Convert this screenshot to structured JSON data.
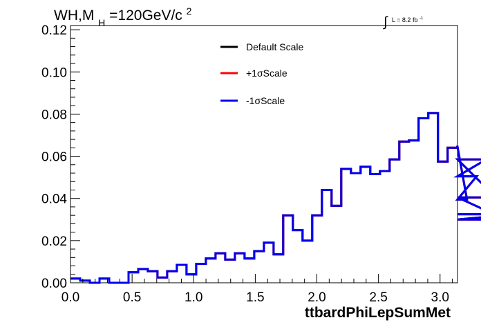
{
  "chart_data": {
    "type": "step",
    "title_parts": {
      "base": "WH,M",
      "subscript": "H",
      "value": "=120GeV/c",
      "superscript": "2"
    },
    "luminosity": {
      "integral_sign": "∫",
      "text": "L = 8.2 fb",
      "superscript": "-1"
    },
    "xlabel": "ttbardPhiLepSumMet",
    "ylabel": "",
    "xlim": [
      0,
      3.1416
    ],
    "ylim": [
      0,
      0.122
    ],
    "x_ticks": [
      "0.0",
      "0.5",
      "1.0",
      "1.5",
      "2.0",
      "2.5",
      "3.0"
    ],
    "x_tick_values": [
      0,
      0.5,
      1.0,
      1.5,
      2.0,
      2.5,
      3.0
    ],
    "y_ticks": [
      "0.00",
      "0.02",
      "0.04",
      "0.06",
      "0.08",
      "0.10",
      "0.12"
    ],
    "y_tick_values": [
      0,
      0.02,
      0.04,
      0.06,
      0.08,
      0.1,
      0.12
    ],
    "bin_width": 0.0785,
    "series": [
      {
        "name": "Default Scale",
        "color": "#000000",
        "values": [
          0.002,
          0.001,
          0.0,
          0.002,
          0.0,
          0.0,
          0.005,
          0.0065,
          0.0055,
          0.0025,
          0.0055,
          0.0085,
          0.004,
          0.009,
          0.0115,
          0.014,
          0.011,
          0.014,
          0.0115,
          0.015,
          0.019,
          0.0135,
          0.032,
          0.025,
          0.02,
          0.032,
          0.044,
          0.0365,
          0.054,
          0.052,
          0.055,
          0.0515,
          0.053,
          0.0585,
          0.067,
          0.0675,
          0.078,
          0.0805,
          0.0575,
          0.064,
          0.0645,
          0.0395,
          0.0505,
          0.0585,
          0.0405,
          0.03,
          0.0325
        ]
      },
      {
        "name": "+1σScale",
        "color": "#ff0000",
        "values": [
          0.002,
          0.001,
          0.0,
          0.002,
          0.0,
          0.0,
          0.005,
          0.0065,
          0.0055,
          0.0025,
          0.0055,
          0.0085,
          0.004,
          0.009,
          0.0115,
          0.014,
          0.011,
          0.014,
          0.0115,
          0.015,
          0.019,
          0.0135,
          0.032,
          0.025,
          0.02,
          0.032,
          0.044,
          0.0365,
          0.054,
          0.052,
          0.055,
          0.0515,
          0.053,
          0.0585,
          0.067,
          0.0675,
          0.078,
          0.0805,
          0.0575,
          0.064,
          0.0645,
          0.0395,
          0.0505,
          0.0585,
          0.0405,
          0.03,
          0.0325
        ]
      },
      {
        "name": "-1σScale",
        "color": "#0000ee",
        "values": [
          0.002,
          0.001,
          0.0,
          0.002,
          0.0,
          0.0,
          0.005,
          0.0065,
          0.0055,
          0.0025,
          0.0055,
          0.0085,
          0.004,
          0.009,
          0.0115,
          0.014,
          0.011,
          0.014,
          0.0115,
          0.015,
          0.019,
          0.0135,
          0.032,
          0.025,
          0.02,
          0.032,
          0.044,
          0.0365,
          0.054,
          0.052,
          0.055,
          0.0515,
          0.053,
          0.0585,
          0.067,
          0.0675,
          0.078,
          0.0805,
          0.0575,
          0.064,
          0.0645,
          0.0395,
          0.0505,
          0.0585,
          0.0405,
          0.03,
          0.0325
        ]
      }
    ],
    "legend_position": "top-center",
    "grid": false
  }
}
